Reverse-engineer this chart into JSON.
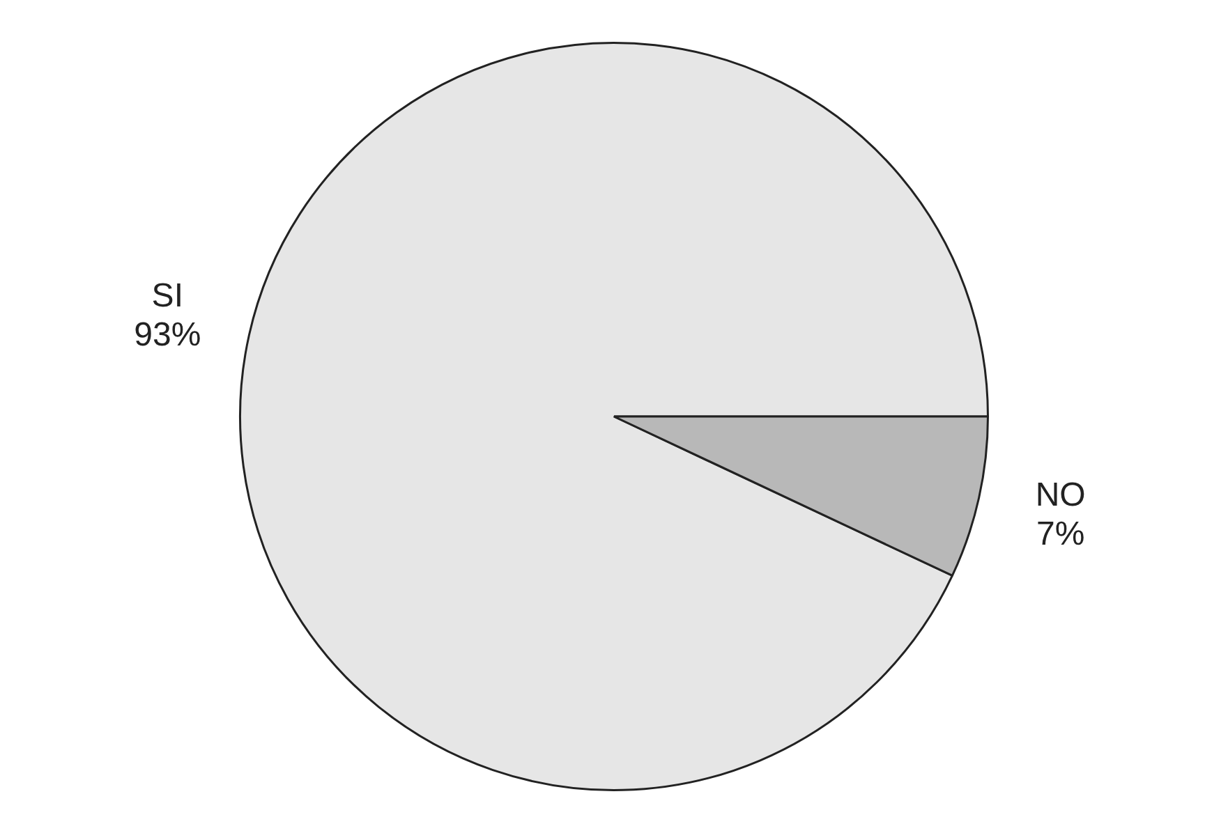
{
  "chart_data": {
    "type": "pie",
    "categories": [
      "SI",
      "NO"
    ],
    "values": [
      93,
      7
    ],
    "value_labels": [
      "93%",
      "7%"
    ],
    "colors": [
      "#e6e6e6",
      "#b8b8b8"
    ],
    "legend": false
  }
}
